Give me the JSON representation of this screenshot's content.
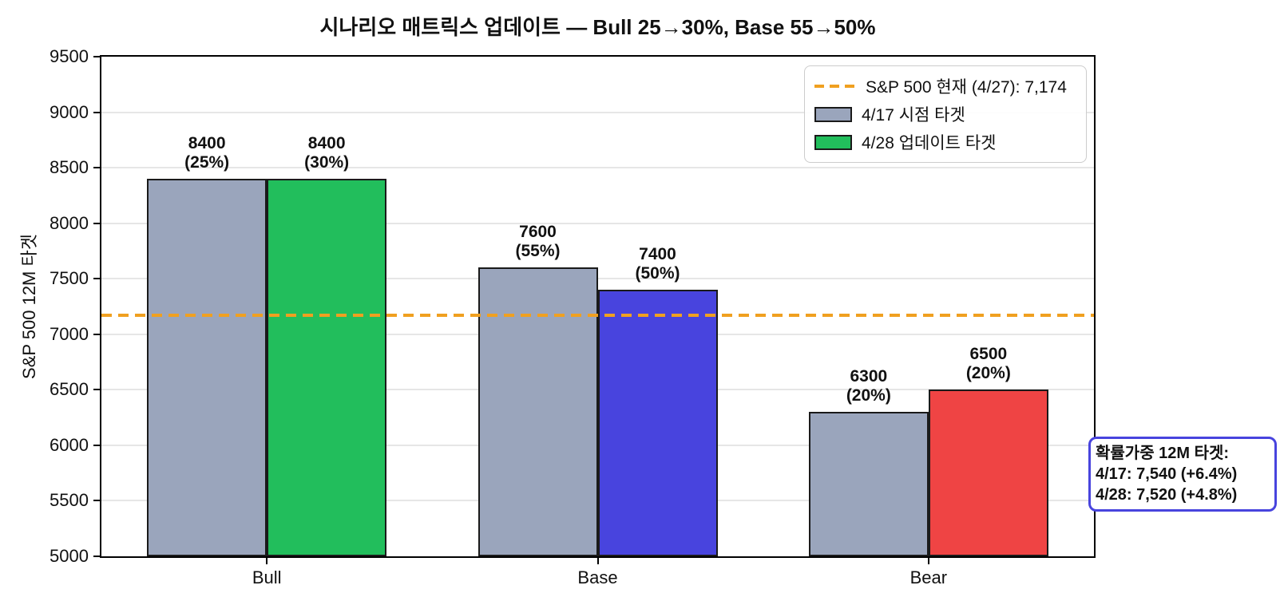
{
  "chart_data": {
    "type": "bar",
    "title": "시나리오 매트릭스 업데이트 — Bull 25→30%, Base 55→50%",
    "ylabel": "S&P 500 12M 타겟",
    "xlabel": "",
    "categories": [
      "Bull",
      "Base",
      "Bear"
    ],
    "series": [
      {
        "name": "4/17 시점 타겟",
        "values": [
          8400,
          7600,
          6300
        ],
        "probs": [
          "(25%)",
          "(55%)",
          "(20%)"
        ],
        "bar_colors": [
          "#9AA5BC",
          "#9AA5BC",
          "#9AA5BC"
        ],
        "swatch_color": "#9AA5BC"
      },
      {
        "name": "4/28 업데이트 타겟",
        "values": [
          8400,
          7400,
          6500
        ],
        "probs": [
          "(30%)",
          "(50%)",
          "(20%)"
        ],
        "bar_colors": [
          "#22BE5C",
          "#4844DE",
          "#EF4444"
        ],
        "swatch_color": "#22BE5C"
      }
    ],
    "reference_line": {
      "value": 7174,
      "label": "S&P 500 현재 (4/27): 7,174",
      "color": "#F0A020",
      "style": "dashed"
    },
    "ylim": [
      5000,
      9500
    ],
    "yticks": [
      5000,
      5500,
      6000,
      6500,
      7000,
      7500,
      8000,
      8500,
      9000,
      9500
    ],
    "grid": "horizontal",
    "legend_position": "upper right",
    "annotation": {
      "lines": [
        "확률가중 12M 타겟:",
        "4/17: 7,540 (+6.4%)",
        "4/28: 7,520 (+4.8%)"
      ],
      "border_color": "#4844DE"
    },
    "bar_edge_color": "#1a1a1a"
  }
}
